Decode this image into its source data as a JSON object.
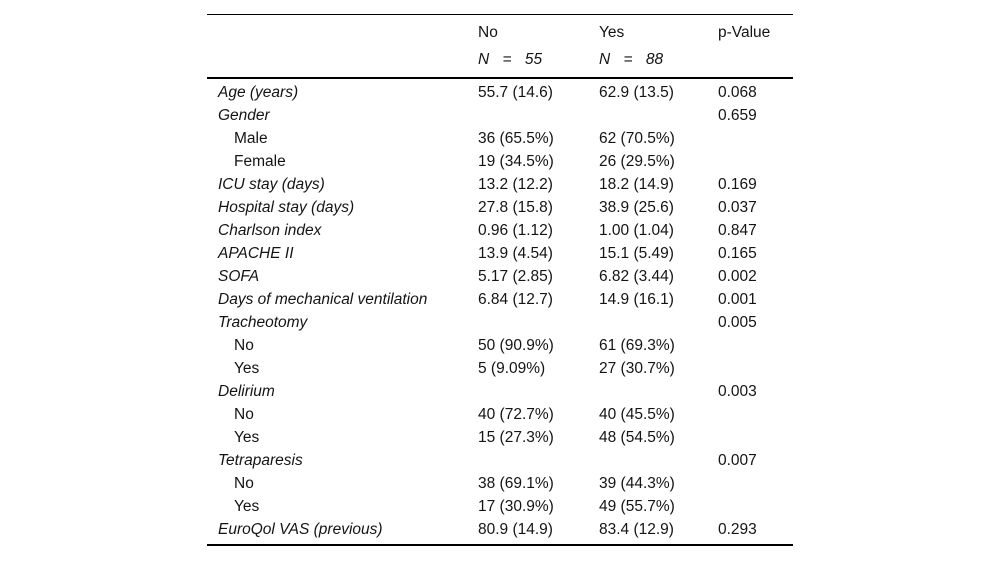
{
  "table": {
    "header": {
      "group_no_label": "No",
      "group_no_n": "N = 55",
      "group_yes_label": "Yes",
      "group_yes_n": "N = 88",
      "pvalue_label": "p-Value"
    },
    "rows": [
      {
        "label": "Age (years)",
        "indent": false,
        "no": "55.7 (14.6)",
        "yes": "62.9 (13.5)",
        "p": "0.068"
      },
      {
        "label": "Gender",
        "indent": false,
        "no": "",
        "yes": "",
        "p": "0.659"
      },
      {
        "label": "Male",
        "indent": true,
        "no": "36 (65.5%)",
        "yes": "62 (70.5%)",
        "p": ""
      },
      {
        "label": "Female",
        "indent": true,
        "no": "19 (34.5%)",
        "yes": "26 (29.5%)",
        "p": ""
      },
      {
        "label": "ICU stay (days)",
        "indent": false,
        "no": "13.2 (12.2)",
        "yes": "18.2 (14.9)",
        "p": "0.169"
      },
      {
        "label": "Hospital stay (days)",
        "indent": false,
        "no": "27.8 (15.8)",
        "yes": "38.9 (25.6)",
        "p": "0.037"
      },
      {
        "label": "Charlson index",
        "indent": false,
        "no": "0.96 (1.12)",
        "yes": "1.00 (1.04)",
        "p": "0.847"
      },
      {
        "label": "APACHE II",
        "indent": false,
        "no": "13.9 (4.54)",
        "yes": "15.1 (5.49)",
        "p": "0.165"
      },
      {
        "label": "SOFA",
        "indent": false,
        "no": "5.17 (2.85)",
        "yes": "6.82 (3.44)",
        "p": "0.002"
      },
      {
        "label": "Days of mechanical ventilation",
        "indent": false,
        "no": "6.84 (12.7)",
        "yes": "14.9 (16.1)",
        "p": "0.001"
      },
      {
        "label": "Tracheotomy",
        "indent": false,
        "no": "",
        "yes": "",
        "p": "0.005"
      },
      {
        "label": "No",
        "indent": true,
        "no": "50 (90.9%)",
        "yes": "61 (69.3%)",
        "p": ""
      },
      {
        "label": "Yes",
        "indent": true,
        "no": "5 (9.09%)",
        "yes": "27 (30.7%)",
        "p": ""
      },
      {
        "label": "Delirium",
        "indent": false,
        "no": "",
        "yes": "",
        "p": "0.003"
      },
      {
        "label": "No",
        "indent": true,
        "no": "40 (72.7%)",
        "yes": "40 (45.5%)",
        "p": ""
      },
      {
        "label": "Yes",
        "indent": true,
        "no": "15 (27.3%)",
        "yes": "48 (54.5%)",
        "p": ""
      },
      {
        "label": "Tetraparesis",
        "indent": false,
        "no": "",
        "yes": "",
        "p": "0.007"
      },
      {
        "label": "No",
        "indent": true,
        "no": "38 (69.1%)",
        "yes": "39 (44.3%)",
        "p": ""
      },
      {
        "label": "Yes",
        "indent": true,
        "no": "17 (30.9%)",
        "yes": "49 (55.7%)",
        "p": ""
      },
      {
        "label": "EuroQol VAS (previous)",
        "indent": false,
        "no": "80.9 (14.9)",
        "yes": "83.4 (12.9)",
        "p": "0.293"
      }
    ],
    "text_color": "#141414",
    "rule_color": "#000000",
    "background_color": "#ffffff"
  }
}
